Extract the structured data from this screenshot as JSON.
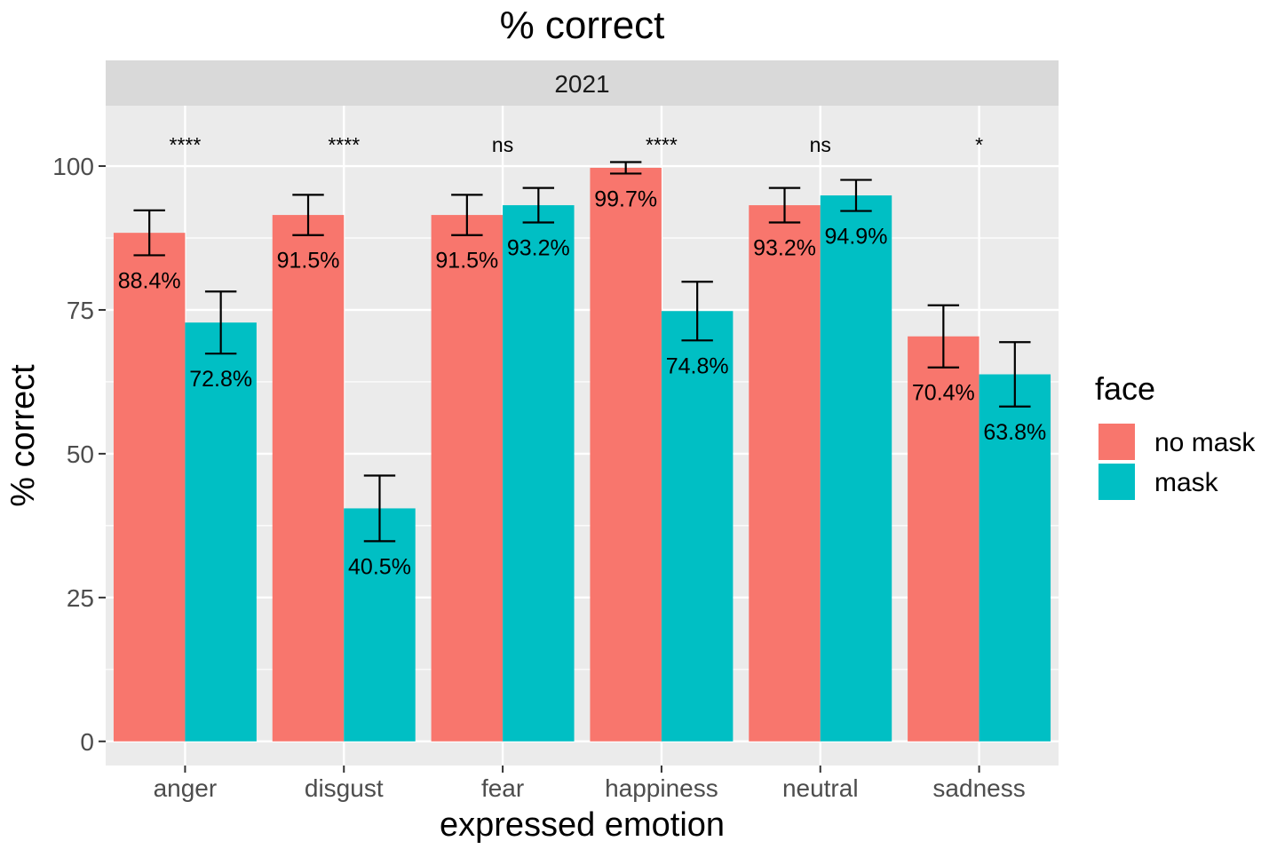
{
  "chart_data": {
    "type": "bar",
    "title": "% correct",
    "facet_label": "2021",
    "xlabel": "expressed emotion",
    "ylabel": "% correct",
    "ylim": [
      -4.2,
      110.5
    ],
    "yticks": [
      0,
      25,
      50,
      75,
      100
    ],
    "ytick_labels": [
      "0",
      "25",
      "50",
      "75",
      "100"
    ],
    "categories": [
      "anger",
      "disgust",
      "fear",
      "happiness",
      "neutral",
      "sadness"
    ],
    "significance": [
      "****",
      "****",
      "ns",
      "****",
      "ns",
      "*"
    ],
    "significance_y": 102.5,
    "series": [
      {
        "name": "no mask",
        "color": "#F8766D",
        "values": [
          88.4,
          91.5,
          91.5,
          99.7,
          93.2,
          70.4
        ],
        "labels": [
          "88.4%",
          "91.5%",
          "91.5%",
          "99.7%",
          "93.2%",
          "70.4%"
        ],
        "error_low": [
          84.5,
          88.0,
          88.0,
          98.7,
          90.2,
          65.0
        ],
        "error_high": [
          92.3,
          95.0,
          95.0,
          100.7,
          96.2,
          75.8
        ]
      },
      {
        "name": "mask",
        "color": "#00BFC4",
        "values": [
          72.8,
          40.5,
          93.2,
          74.8,
          94.9,
          63.8
        ],
        "labels": [
          "72.8%",
          "40.5%",
          "93.2%",
          "74.8%",
          "94.9%",
          "63.8%"
        ],
        "error_low": [
          67.4,
          34.8,
          90.2,
          69.7,
          92.2,
          58.2
        ],
        "error_high": [
          78.2,
          46.2,
          96.2,
          79.9,
          97.6,
          69.4
        ]
      }
    ],
    "legend": {
      "title": "face",
      "position": "right",
      "entries": [
        "no mask",
        "mask"
      ]
    },
    "grid": true,
    "panel_background": "#EBEBEB",
    "strip_background": "#D9D9D9"
  }
}
